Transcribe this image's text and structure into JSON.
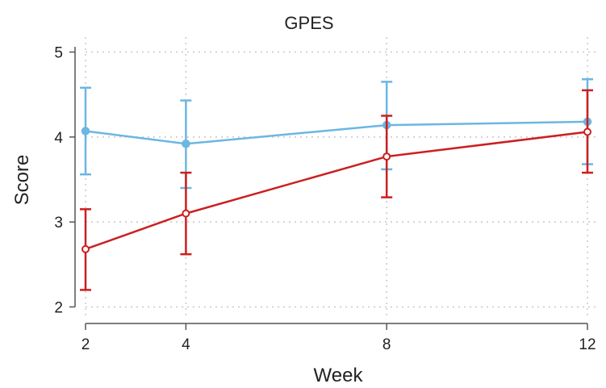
{
  "chart_data": {
    "type": "line",
    "title": "GPES",
    "xlabel": "Week",
    "ylabel": "Score",
    "x": [
      2,
      4,
      8,
      12
    ],
    "x_ticks": [
      "2",
      "4",
      "8",
      "12"
    ],
    "y_ticks": [
      "2",
      "3",
      "4",
      "5"
    ],
    "xlim": [
      2,
      12
    ],
    "ylim": [
      1.9,
      5.1
    ],
    "grid": true,
    "legend": "none",
    "series": [
      {
        "color": "#6cb6e3",
        "values": [
          4.07,
          3.92,
          4.14,
          4.18
        ],
        "lower": [
          3.56,
          3.4,
          3.62,
          3.68
        ],
        "upper": [
          4.58,
          4.43,
          4.65,
          4.68
        ]
      },
      {
        "color": "#cc1f1f",
        "values": [
          2.68,
          3.1,
          3.77,
          4.06
        ],
        "lower": [
          2.2,
          2.62,
          3.29,
          3.58
        ],
        "upper": [
          3.15,
          3.58,
          4.25,
          4.55
        ]
      }
    ]
  }
}
